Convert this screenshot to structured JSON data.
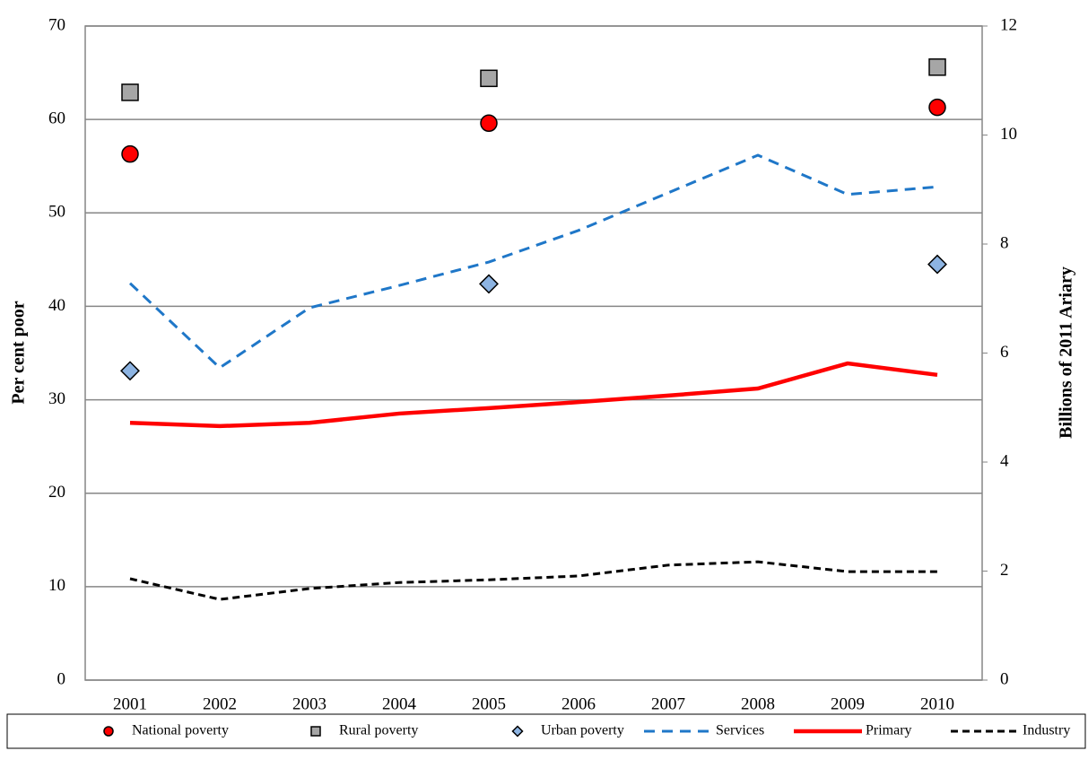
{
  "chart_data": {
    "type": "line",
    "ylabel": "Per cent poor",
    "y2label": "Billions of 2011 Ariary",
    "categories": [
      "2001",
      "2002",
      "2003",
      "2004",
      "2005",
      "2006",
      "2007",
      "2008",
      "2009",
      "2010"
    ],
    "ylim": [
      0,
      70
    ],
    "yticks": [
      0,
      10,
      20,
      30,
      40,
      50,
      60,
      70
    ],
    "y2lim": [
      0,
      12
    ],
    "y2ticks": [
      0,
      2,
      4,
      6,
      8,
      10,
      12
    ],
    "grid": true,
    "legend": "bottom",
    "series": [
      {
        "name": "National poverty",
        "color": "#ff0000",
        "marker": "circle",
        "values": [
          56.3,
          null,
          null,
          null,
          59.6,
          null,
          null,
          null,
          null,
          61.3
        ]
      },
      {
        "name": "Rural poverty",
        "color": "#a6a6a6",
        "marker": "square",
        "values": [
          62.9,
          null,
          null,
          null,
          64.4,
          null,
          null,
          null,
          null,
          65.6
        ]
      },
      {
        "name": "Urban poverty",
        "color": "#8db4e2",
        "marker": "diamond",
        "values": [
          33.1,
          null,
          null,
          null,
          42.4,
          null,
          null,
          null,
          null,
          44.5
        ]
      },
      {
        "name": "Services",
        "color": "#1f77c8",
        "dash": "12,8",
        "axis": "y2",
        "values": [
          7.28,
          5.73,
          6.83,
          7.24,
          7.67,
          8.25,
          8.94,
          9.63,
          8.91,
          9.05
        ]
      },
      {
        "name": "Primary",
        "color": "#ff0000",
        "axis": "y2",
        "values": [
          4.72,
          4.66,
          4.72,
          4.89,
          4.99,
          5.1,
          5.22,
          5.35,
          5.81,
          5.6
        ]
      },
      {
        "name": "Industry",
        "color": "#000000",
        "dash": "8,5",
        "axis": "y2",
        "values": [
          1.86,
          1.48,
          1.68,
          1.79,
          1.84,
          1.91,
          2.11,
          2.17,
          1.99,
          1.99
        ]
      }
    ]
  }
}
